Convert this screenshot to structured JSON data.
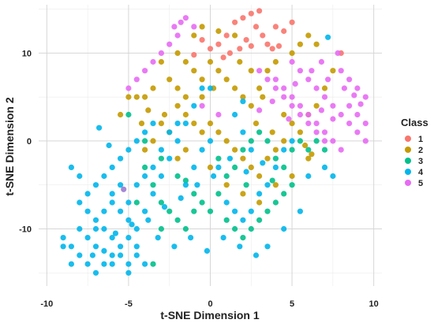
{
  "chart_data": {
    "type": "scatter",
    "xlabel": "t-SNE Dimension 1",
    "ylabel": "t-SNE Dimension 2",
    "xlim": [
      -10.5,
      10.5
    ],
    "ylim": [
      -16.5,
      15.5
    ],
    "xticks": [
      -10,
      -5,
      0,
      5,
      10
    ],
    "yticks": [
      -10,
      0,
      10
    ],
    "grid": true,
    "legend": {
      "title": "Class",
      "placement": "right"
    },
    "series": [
      {
        "name": "1",
        "color": "#F8766D",
        "points": [
          [
            0.5,
            11
          ],
          [
            1,
            12
          ],
          [
            1.5,
            13.5
          ],
          [
            2,
            14
          ],
          [
            2.5,
            14.5
          ],
          [
            3,
            14.8
          ],
          [
            2.8,
            13
          ],
          [
            3.2,
            12
          ],
          [
            3.5,
            11
          ],
          [
            2.2,
            11.5
          ],
          [
            1.8,
            10.5
          ],
          [
            4,
            13
          ],
          [
            4.5,
            12.5
          ],
          [
            5,
            13.5
          ],
          [
            3.8,
            10.5
          ],
          [
            1.2,
            10
          ],
          [
            -0.5,
            11.5
          ],
          [
            0,
            10.5
          ],
          [
            2.5,
            10.8
          ],
          [
            4.2,
            10.8
          ],
          [
            8,
            10
          ],
          [
            -1,
            9.8
          ],
          [
            0.8,
            9.5
          ]
        ]
      },
      {
        "name": "2",
        "color": "#C49A00",
        "points": [
          [
            -1,
            12
          ],
          [
            -0.5,
            13
          ],
          [
            0.5,
            12.5
          ],
          [
            1.5,
            12
          ],
          [
            -2,
            10
          ],
          [
            -1.5,
            9
          ],
          [
            -1,
            8
          ],
          [
            -0.5,
            7
          ],
          [
            0,
            9
          ],
          [
            0.5,
            8
          ],
          [
            1,
            7
          ],
          [
            1.5,
            6
          ],
          [
            2,
            5
          ],
          [
            2.5,
            4
          ],
          [
            3,
            6
          ],
          [
            3.5,
            8
          ],
          [
            4,
            9
          ],
          [
            5,
            10
          ],
          [
            5.5,
            11
          ],
          [
            6,
            12
          ],
          [
            6.5,
            11
          ],
          [
            -3,
            9
          ],
          [
            -2.5,
            7
          ],
          [
            -3.5,
            6
          ],
          [
            -4,
            5
          ],
          [
            -4.5,
            5
          ],
          [
            -5,
            5
          ],
          [
            -5.5,
            3
          ],
          [
            -2,
            4
          ],
          [
            -1.5,
            3
          ],
          [
            -1,
            2
          ],
          [
            -0.5,
            1
          ],
          [
            0,
            2
          ],
          [
            0.5,
            1
          ],
          [
            1,
            0
          ],
          [
            1.5,
            -1
          ],
          [
            2,
            -2
          ],
          [
            2.5,
            -3
          ],
          [
            3,
            -4
          ],
          [
            3.5,
            -2
          ],
          [
            4,
            -1
          ],
          [
            4.5,
            0
          ],
          [
            5,
            2
          ],
          [
            5.5,
            1
          ],
          [
            6,
            3
          ],
          [
            6.5,
            4
          ],
          [
            7,
            6
          ],
          [
            7.5,
            8
          ],
          [
            -3,
            2
          ],
          [
            -2.5,
            1
          ],
          [
            -3.5,
            0
          ],
          [
            -4,
            -1
          ],
          [
            -2,
            -2
          ],
          [
            -1.5,
            -1
          ],
          [
            0,
            -3
          ],
          [
            1,
            -5
          ],
          [
            2,
            -6
          ],
          [
            3,
            -7
          ],
          [
            4,
            -5
          ],
          [
            5,
            -4
          ],
          [
            6,
            -2
          ],
          [
            -0.5,
            5
          ],
          [
            -1.5,
            5
          ],
          [
            -2,
            6
          ],
          [
            3.2,
            5
          ],
          [
            4.5,
            3
          ],
          [
            2.5,
            8
          ],
          [
            1.8,
            9
          ],
          [
            0.2,
            6
          ],
          [
            -2.8,
            3
          ],
          [
            -3.8,
            3.5
          ],
          [
            -4.2,
            2
          ],
          [
            5.8,
            -0.5
          ],
          [
            6.2,
            -1.5
          ],
          [
            2.8,
            2
          ],
          [
            3.8,
            1
          ]
        ]
      },
      {
        "name": "3",
        "color": "#00C08B",
        "points": [
          [
            -5,
            3
          ],
          [
            -4,
            0
          ],
          [
            -3,
            -2
          ],
          [
            -2,
            -4
          ],
          [
            -1,
            -6
          ],
          [
            0,
            -8
          ],
          [
            1,
            -9
          ],
          [
            1.5,
            -10
          ],
          [
            2,
            -11
          ],
          [
            2.5,
            -10
          ],
          [
            3,
            -9
          ],
          [
            3.5,
            -8
          ],
          [
            4,
            -7
          ],
          [
            4.5,
            -6
          ],
          [
            5,
            -5
          ],
          [
            -3,
            -7
          ],
          [
            -2.5,
            -8
          ],
          [
            -2,
            -9
          ],
          [
            -1.5,
            -10
          ],
          [
            -1,
            -8
          ],
          [
            -0.5,
            -7
          ],
          [
            0.5,
            -6
          ],
          [
            1,
            -4
          ],
          [
            1.5,
            -3
          ],
          [
            2,
            -1
          ],
          [
            2.5,
            0
          ],
          [
            3,
            1
          ],
          [
            3.5,
            0
          ],
          [
            4,
            -2
          ],
          [
            4.5,
            -3
          ],
          [
            5,
            -1
          ],
          [
            5.5,
            0
          ],
          [
            6,
            -1
          ],
          [
            6.5,
            0
          ],
          [
            7,
            -1
          ],
          [
            -4,
            -3
          ],
          [
            -3.5,
            -5
          ],
          [
            -4.5,
            -7
          ],
          [
            -3,
            -10
          ],
          [
            -3.5,
            -14
          ],
          [
            -1.5,
            -4.5
          ],
          [
            0.5,
            -2
          ],
          [
            2.2,
            -5
          ],
          [
            3.8,
            -4.5
          ]
        ]
      },
      {
        "name": "4",
        "color": "#00B6EB",
        "points": [
          [
            -9,
            -11
          ],
          [
            -8.5,
            -12
          ],
          [
            -8,
            -13
          ],
          [
            -7.5,
            -14
          ],
          [
            -7,
            -15
          ],
          [
            -6.5,
            -14
          ],
          [
            -6,
            -13
          ],
          [
            -5.5,
            -12
          ],
          [
            -5,
            -11
          ],
          [
            -4.5,
            -13
          ],
          [
            -4,
            -14
          ],
          [
            -9,
            -12
          ],
          [
            -8.5,
            -14
          ],
          [
            -8,
            -10
          ],
          [
            -7.5,
            -11
          ],
          [
            -7,
            -12
          ],
          [
            -6.5,
            -10
          ],
          [
            -6,
            -11
          ],
          [
            -5.5,
            -13
          ],
          [
            -5,
            -14
          ],
          [
            -4.5,
            -12
          ],
          [
            -8,
            -7
          ],
          [
            -7.5,
            -6
          ],
          [
            -7,
            -5
          ],
          [
            -6.5,
            -4
          ],
          [
            -6,
            -3
          ],
          [
            -5.5,
            -2
          ],
          [
            -5,
            -1
          ],
          [
            -4.5,
            0
          ],
          [
            -4,
            1
          ],
          [
            -3.5,
            2
          ],
          [
            -6,
            -7
          ],
          [
            -5.5,
            -8
          ],
          [
            -5,
            -9
          ],
          [
            -4.5,
            -10
          ],
          [
            -4,
            -8
          ],
          [
            -3.5,
            -6
          ],
          [
            -3,
            -4
          ],
          [
            -2.5,
            -2
          ],
          [
            -2,
            0
          ],
          [
            -1.5,
            2
          ],
          [
            -1,
            4
          ],
          [
            -0.5,
            6
          ],
          [
            0,
            6
          ],
          [
            -7,
            -9
          ],
          [
            -6.5,
            -8
          ],
          [
            -6,
            -6
          ],
          [
            -5.5,
            -5
          ],
          [
            -5,
            -7
          ],
          [
            -4.5,
            -5
          ],
          [
            -4,
            -4
          ],
          [
            -3.5,
            -3
          ],
          [
            -3,
            -1
          ],
          [
            -2.5,
            1
          ],
          [
            -2,
            2
          ],
          [
            -1.5,
            -5
          ],
          [
            -1,
            -3
          ],
          [
            -0.5,
            -1
          ],
          [
            0,
            0
          ],
          [
            0.5,
            -3
          ],
          [
            1,
            -7
          ],
          [
            1.5,
            -8
          ],
          [
            2,
            -9
          ],
          [
            2.5,
            -8
          ],
          [
            3,
            -6
          ],
          [
            3.5,
            -5
          ],
          [
            4,
            -3
          ],
          [
            4.5,
            -1
          ],
          [
            5,
            0
          ],
          [
            1.5,
            3
          ],
          [
            2,
            1
          ],
          [
            2.5,
            -1
          ],
          [
            -8.5,
            -3
          ],
          [
            -8,
            -4
          ],
          [
            -7.5,
            -8
          ],
          [
            -7,
            -10
          ],
          [
            -6,
            -14
          ],
          [
            -5,
            -15
          ],
          [
            -6.5,
            -12.5
          ],
          [
            -7.2,
            -13
          ],
          [
            -5.8,
            -10.5
          ],
          [
            -4.8,
            -9.5
          ],
          [
            -3.8,
            -9
          ],
          [
            -2.8,
            -7.5
          ],
          [
            -1.8,
            -6.5
          ],
          [
            -0.8,
            -5
          ],
          [
            0.2,
            -4
          ],
          [
            1.2,
            -2
          ],
          [
            2.2,
            -3.5
          ],
          [
            3.2,
            -2.5
          ],
          [
            -3.2,
            -11
          ],
          [
            -2.2,
            -12
          ],
          [
            -1.2,
            -11
          ],
          [
            -0.2,
            -12.5
          ],
          [
            0.8,
            -11
          ],
          [
            1.8,
            -12
          ],
          [
            2.8,
            -13
          ],
          [
            3.5,
            -12
          ],
          [
            4.5,
            -10
          ],
          [
            5.5,
            -8
          ],
          [
            6,
            -4
          ],
          [
            7,
            -3
          ],
          [
            7.5,
            -4
          ],
          [
            7.2,
            11.8
          ],
          [
            2,
            4.5
          ],
          [
            -6.8,
            1.5
          ],
          [
            -6.2,
            -0.5
          ]
        ]
      },
      {
        "name": "5",
        "color": "#E76BF3",
        "points": [
          [
            -1.5,
            14
          ],
          [
            -1,
            13
          ],
          [
            -2,
            12
          ],
          [
            -2.5,
            11
          ],
          [
            -3,
            10
          ],
          [
            -3.5,
            9
          ],
          [
            -4,
            8
          ],
          [
            -4.5,
            7
          ],
          [
            -5,
            6
          ],
          [
            5,
            9
          ],
          [
            5.5,
            8
          ],
          [
            6,
            7
          ],
          [
            6.5,
            6
          ],
          [
            7,
            5
          ],
          [
            7.5,
            4
          ],
          [
            8,
            3
          ],
          [
            8.5,
            2
          ],
          [
            9,
            1
          ],
          [
            9.5,
            0
          ],
          [
            4,
            7
          ],
          [
            4.5,
            6
          ],
          [
            5,
            5
          ],
          [
            5.5,
            4
          ],
          [
            6,
            3
          ],
          [
            6.5,
            2
          ],
          [
            7,
            1
          ],
          [
            7.5,
            0
          ],
          [
            8,
            -1
          ],
          [
            3,
            8
          ],
          [
            3.5,
            7
          ],
          [
            4,
            6
          ],
          [
            4.5,
            5
          ],
          [
            5,
            4
          ],
          [
            5.5,
            3
          ],
          [
            6,
            2
          ],
          [
            6.5,
            1
          ],
          [
            7,
            0
          ],
          [
            8,
            8
          ],
          [
            8.5,
            7
          ],
          [
            9,
            6
          ],
          [
            9.5,
            5
          ],
          [
            8.5,
            4
          ],
          [
            9,
            3
          ],
          [
            9.5,
            2
          ],
          [
            -0.5,
            4
          ],
          [
            0.5,
            3
          ],
          [
            7.8,
            10
          ],
          [
            6.8,
            9
          ],
          [
            8.2,
            6
          ],
          [
            7.2,
            7
          ],
          [
            6.2,
            8
          ],
          [
            5.2,
            6.5
          ],
          [
            4.8,
            2.5
          ],
          [
            -1.8,
            13.5
          ],
          [
            -2.2,
            13
          ],
          [
            9.2,
            4.2
          ],
          [
            8.8,
            5.2
          ],
          [
            7.5,
            2.5
          ],
          [
            6.8,
            3.5
          ],
          [
            3,
            3.5
          ],
          [
            3.8,
            4.5
          ]
        ]
      },
      {
        "name": "",
        "color": "#9A7BCF",
        "points": [
          [
            -5.3,
            -5.5
          ]
        ]
      }
    ]
  }
}
